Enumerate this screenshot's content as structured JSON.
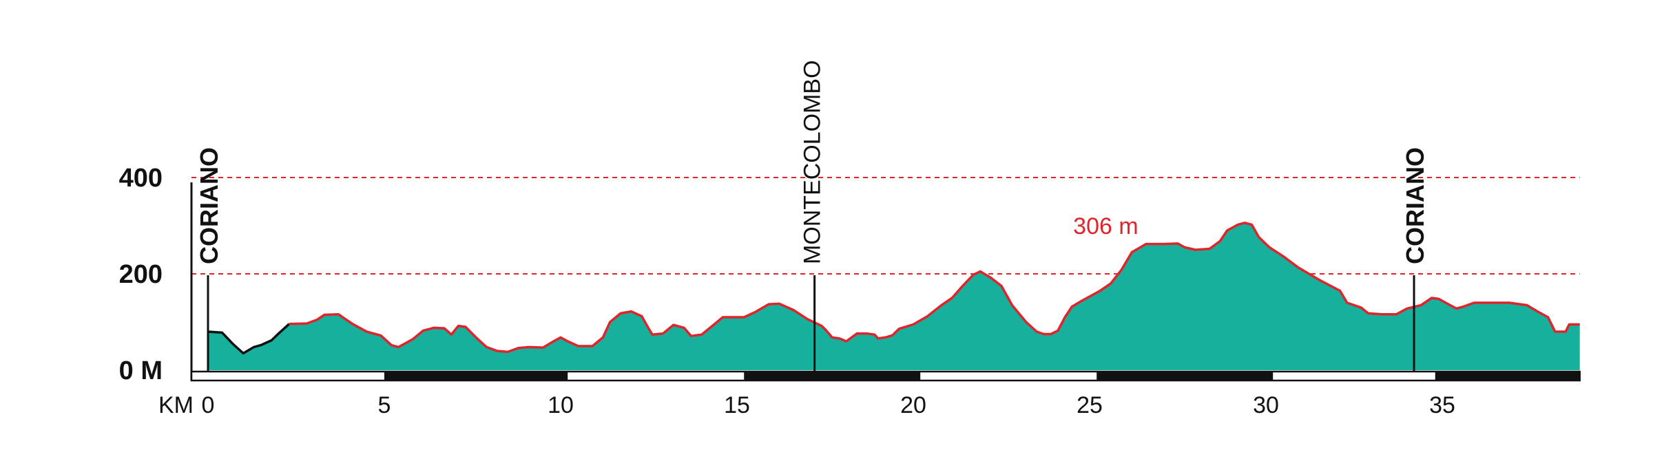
{
  "chart_data": {
    "type": "area",
    "x_prefix": "KM",
    "xticks": [
      {
        "value": 0,
        "label": "0"
      },
      {
        "value": 5,
        "label": "5"
      },
      {
        "value": 10,
        "label": "10"
      },
      {
        "value": 15,
        "label": "15"
      },
      {
        "value": 20,
        "label": "20"
      },
      {
        "value": 25,
        "label": "25"
      },
      {
        "value": 30,
        "label": "30"
      },
      {
        "value": 35,
        "label": "35"
      }
    ],
    "yticks": [
      {
        "value": 0,
        "label": "0 M"
      },
      {
        "value": 200,
        "label": "200"
      },
      {
        "value": 400,
        "label": "400"
      }
    ],
    "gridlines": [
      200,
      400
    ],
    "xlim": [
      -0.45,
      38.9
    ],
    "ylim": [
      0,
      400
    ],
    "fill_color": "#16b09c",
    "line_color": "#e0242b",
    "grid_color": "#e0242b",
    "axis_color": "#111111",
    "km_band_segments": [
      {
        "from": -0.45,
        "to": 5,
        "fill": "white"
      },
      {
        "from": 5,
        "to": 10.2,
        "fill": "black"
      },
      {
        "from": 10.2,
        "to": 15.2,
        "fill": "white"
      },
      {
        "from": 15.2,
        "to": 20.2,
        "fill": "black"
      },
      {
        "from": 20.2,
        "to": 25.2,
        "fill": "white"
      },
      {
        "from": 25.2,
        "to": 30.2,
        "fill": "black"
      },
      {
        "from": 30.2,
        "to": 34.2,
        "fill": "white"
      },
      {
        "from": 34.2,
        "to": 34.8,
        "fill": "white"
      },
      {
        "from": 34.8,
        "to": 38.9,
        "fill": "black"
      }
    ],
    "locations": [
      {
        "km": 0,
        "name": "CORIANO",
        "bold": true,
        "top_elevation": 200
      },
      {
        "km": 17.2,
        "name": "MONTECOLOMBO",
        "bold": false,
        "top_elevation": 200
      },
      {
        "km": 34.2,
        "name": "CORIANO",
        "bold": true,
        "top_elevation": 200
      }
    ],
    "peak_annotation": {
      "text": "306 m",
      "km": 24.3,
      "elevation": 306
    },
    "profile": [
      [
        0,
        80
      ],
      [
        0.4,
        78
      ],
      [
        0.7,
        55
      ],
      [
        1.0,
        35
      ],
      [
        1.3,
        48
      ],
      [
        1.5,
        52
      ],
      [
        1.8,
        62
      ],
      [
        2.0,
        76
      ],
      [
        2.3,
        96
      ],
      [
        2.8,
        97
      ],
      [
        3.1,
        105
      ],
      [
        3.3,
        115
      ],
      [
        3.7,
        116
      ],
      [
        4.1,
        96
      ],
      [
        4.5,
        80
      ],
      [
        4.9,
        72
      ],
      [
        5.2,
        52
      ],
      [
        5.4,
        48
      ],
      [
        5.8,
        64
      ],
      [
        6.1,
        82
      ],
      [
        6.4,
        88
      ],
      [
        6.7,
        87
      ],
      [
        6.9,
        74
      ],
      [
        7.1,
        92
      ],
      [
        7.3,
        90
      ],
      [
        7.6,
        68
      ],
      [
        7.9,
        48
      ],
      [
        8.2,
        40
      ],
      [
        8.5,
        38
      ],
      [
        8.8,
        46
      ],
      [
        9.1,
        48
      ],
      [
        9.5,
        47
      ],
      [
        9.8,
        60
      ],
      [
        10.0,
        68
      ],
      [
        10.2,
        60
      ],
      [
        10.5,
        50
      ],
      [
        10.9,
        50
      ],
      [
        11.2,
        68
      ],
      [
        11.4,
        100
      ],
      [
        11.7,
        118
      ],
      [
        12.0,
        122
      ],
      [
        12.3,
        112
      ],
      [
        12.5,
        86
      ],
      [
        12.6,
        74
      ],
      [
        12.9,
        76
      ],
      [
        13.2,
        94
      ],
      [
        13.5,
        88
      ],
      [
        13.7,
        71
      ],
      [
        14.0,
        74
      ],
      [
        14.3,
        92
      ],
      [
        14.6,
        110
      ],
      [
        14.9,
        110
      ],
      [
        15.2,
        110
      ],
      [
        15.5,
        120
      ],
      [
        15.9,
        137
      ],
      [
        16.2,
        138
      ],
      [
        16.6,
        125
      ],
      [
        17.0,
        106
      ],
      [
        17.4,
        92
      ],
      [
        17.5,
        85
      ],
      [
        17.7,
        68
      ],
      [
        17.9,
        66
      ],
      [
        18.1,
        60
      ],
      [
        18.4,
        76
      ],
      [
        18.7,
        76
      ],
      [
        18.9,
        74
      ],
      [
        19.0,
        66
      ],
      [
        19.2,
        68
      ],
      [
        19.4,
        72
      ],
      [
        19.6,
        86
      ],
      [
        20.0,
        95
      ],
      [
        20.4,
        112
      ],
      [
        20.8,
        135
      ],
      [
        21.1,
        150
      ],
      [
        21.4,
        175
      ],
      [
        21.7,
        198
      ],
      [
        21.9,
        205
      ],
      [
        22.2,
        192
      ],
      [
        22.5,
        175
      ],
      [
        22.8,
        135
      ],
      [
        23.2,
        100
      ],
      [
        23.5,
        80
      ],
      [
        23.7,
        75
      ],
      [
        23.9,
        75
      ],
      [
        24.1,
        82
      ],
      [
        24.3,
        110
      ],
      [
        24.5,
        132
      ],
      [
        24.8,
        145
      ],
      [
        25.3,
        165
      ],
      [
        25.6,
        180
      ],
      [
        25.9,
        208
      ],
      [
        26.2,
        245
      ],
      [
        26.6,
        262
      ],
      [
        27.1,
        262
      ],
      [
        27.5,
        263
      ],
      [
        27.7,
        255
      ],
      [
        28.0,
        250
      ],
      [
        28.4,
        252
      ],
      [
        28.7,
        268
      ],
      [
        28.9,
        290
      ],
      [
        29.2,
        302
      ],
      [
        29.4,
        306
      ],
      [
        29.6,
        302
      ],
      [
        29.8,
        276
      ],
      [
        30.1,
        255
      ],
      [
        30.5,
        236
      ],
      [
        30.9,
        214
      ],
      [
        31.5,
        188
      ],
      [
        32.1,
        165
      ],
      [
        32.3,
        140
      ],
      [
        32.7,
        130
      ],
      [
        32.9,
        118
      ],
      [
        33.3,
        116
      ],
      [
        33.7,
        116
      ],
      [
        34.0,
        128
      ],
      [
        34.4,
        135
      ],
      [
        34.7,
        150
      ],
      [
        34.9,
        148
      ],
      [
        35.1,
        140
      ],
      [
        35.4,
        128
      ],
      [
        35.6,
        132
      ],
      [
        35.9,
        140
      ],
      [
        36.3,
        140
      ],
      [
        36.9,
        140
      ],
      [
        37.4,
        135
      ],
      [
        37.7,
        122
      ],
      [
        38.0,
        110
      ],
      [
        38.2,
        80
      ],
      [
        38.5,
        80
      ],
      [
        38.6,
        95
      ],
      [
        38.9,
        95
      ]
    ],
    "profile_segments_note_black": [
      [
        0,
        2.3
      ]
    ]
  }
}
